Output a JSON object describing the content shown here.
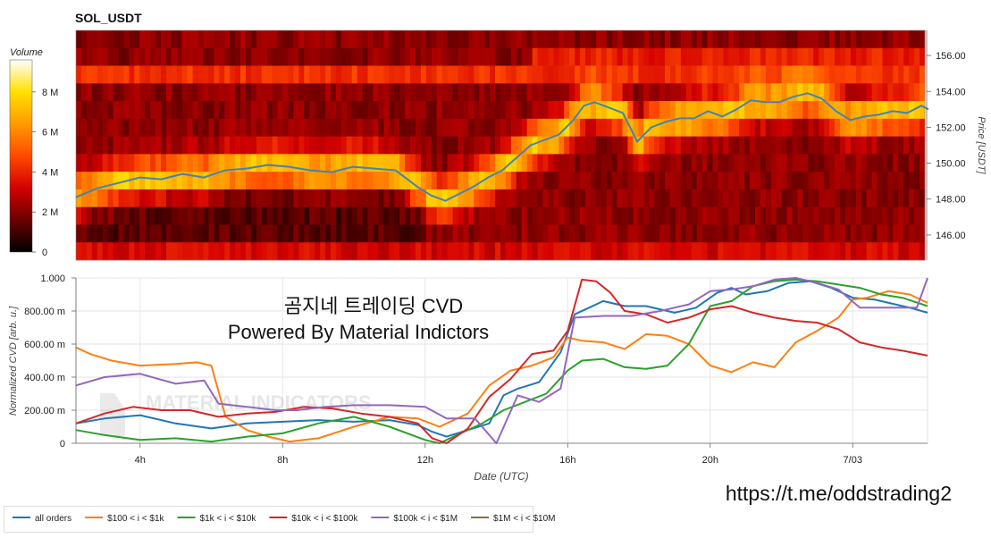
{
  "chart_data": [
    {
      "type": "heatmap",
      "title": "SOL_USDT",
      "colorbar": {
        "label": "Volume",
        "ticks": [
          "0",
          "2 M",
          "4 M",
          "6 M",
          "8 M"
        ],
        "tick_values": [
          0,
          2,
          4,
          6,
          8
        ],
        "range": [
          0,
          9.6
        ],
        "colors": [
          "#000000",
          "#6b0000",
          "#d40000",
          "#ff4a00",
          "#ff9a00",
          "#ffe000",
          "#ffffff"
        ]
      },
      "y_right": {
        "label": "Price [USDT]",
        "ticks": [
          "146.00",
          "148.00",
          "150.00",
          "152.00",
          "154.00",
          "156.00"
        ],
        "tick_values": [
          146,
          148,
          150,
          152,
          154,
          156
        ],
        "range": [
          144.6,
          157.4
        ]
      },
      "price_line": {
        "color": "#4682b4",
        "x_hours": [
          2.2,
          2.8,
          3.4,
          4.0,
          4.6,
          5.2,
          5.8,
          6.4,
          7.0,
          7.6,
          8.2,
          8.8,
          9.4,
          10.0,
          10.6,
          11.2,
          11.8,
          12.2,
          12.6,
          13.0,
          13.4,
          13.8,
          14.2,
          14.6,
          15.0,
          15.4,
          15.8,
          16.2,
          16.5,
          16.8,
          17.2,
          17.6,
          18.0,
          18.4,
          18.8,
          19.2,
          19.6,
          20.0,
          20.4,
          20.8,
          21.2,
          21.6,
          22.0,
          22.4,
          22.8,
          23.2,
          23.6,
          24.0,
          24.4,
          24.8,
          25.2,
          25.6,
          26.0,
          26.2
        ],
        "y_price": [
          148.1,
          148.6,
          148.9,
          149.2,
          149.1,
          149.4,
          149.2,
          149.6,
          149.7,
          149.9,
          149.8,
          149.6,
          149.5,
          149.8,
          149.7,
          149.6,
          148.7,
          148.2,
          147.9,
          148.3,
          148.7,
          149.2,
          149.6,
          150.3,
          151.0,
          151.3,
          151.6,
          152.4,
          153.2,
          153.4,
          153.1,
          152.8,
          151.2,
          152.0,
          152.3,
          152.5,
          152.5,
          152.9,
          152.6,
          153.0,
          153.5,
          153.4,
          153.4,
          153.7,
          153.9,
          153.6,
          152.9,
          152.4,
          152.6,
          152.7,
          152.9,
          152.8,
          153.2,
          153.0
        ]
      }
    },
    {
      "type": "line",
      "title": "곰지네 트레이딩 CVD",
      "subtitle": "Powered By Material Indictors",
      "xlabel": "Date (UTC)",
      "ylabel": "Normalized CVD [arb. u.]",
      "x_ticks": [
        "4h",
        "8h",
        "12h",
        "16h",
        "20h",
        "7/03"
      ],
      "x_tick_values": [
        4,
        8,
        12,
        16,
        20,
        24
      ],
      "xlim": [
        2.2,
        26.1
      ],
      "y_ticks": [
        "0",
        "200.00 m",
        "400.00 m",
        "600.00 m",
        "800.00 m",
        "1.000"
      ],
      "y_tick_values": [
        0,
        0.2,
        0.4,
        0.6,
        0.8,
        1.0
      ],
      "ylim": [
        0,
        1.0
      ],
      "grid": true,
      "legend_position": "bottom",
      "series": [
        {
          "name": "all orders",
          "color": "#1f77b4",
          "x": [
            2.2,
            3.0,
            4.0,
            5.0,
            6.0,
            7.0,
            8.0,
            9.0,
            10.0,
            11.0,
            11.8,
            12.2,
            12.6,
            13.2,
            13.8,
            14.2,
            14.6,
            15.2,
            15.8,
            16.2,
            16.6,
            17.0,
            17.6,
            18.2,
            19.0,
            19.6,
            20.2,
            20.6,
            21.0,
            21.6,
            22.2,
            22.8,
            23.4,
            24.0,
            24.6,
            25.2,
            25.6,
            26.1
          ],
          "y": [
            0.12,
            0.15,
            0.17,
            0.12,
            0.09,
            0.12,
            0.13,
            0.14,
            0.13,
            0.14,
            0.11,
            0.07,
            0.04,
            0.08,
            0.12,
            0.29,
            0.33,
            0.37,
            0.55,
            0.78,
            0.82,
            0.86,
            0.83,
            0.83,
            0.79,
            0.82,
            0.91,
            0.94,
            0.9,
            0.92,
            0.97,
            0.98,
            0.94,
            0.88,
            0.87,
            0.84,
            0.82,
            0.79
          ]
        },
        {
          "name": "$100 < i < $1k",
          "color": "#ff7f0e",
          "x": [
            2.2,
            2.6,
            3.2,
            4.0,
            5.0,
            5.6,
            6.0,
            6.4,
            7.0,
            7.6,
            8.2,
            9.0,
            10.0,
            11.0,
            11.8,
            12.4,
            13.2,
            13.8,
            14.4,
            15.0,
            15.6,
            16.0,
            16.4,
            17.0,
            17.6,
            18.2,
            18.8,
            19.4,
            20.0,
            20.6,
            21.2,
            21.8,
            22.4,
            23.0,
            23.6,
            24.0,
            24.4,
            25.0,
            25.6,
            26.1
          ],
          "y": [
            0.58,
            0.54,
            0.5,
            0.47,
            0.48,
            0.49,
            0.47,
            0.16,
            0.08,
            0.04,
            0.01,
            0.03,
            0.1,
            0.16,
            0.15,
            0.1,
            0.18,
            0.35,
            0.44,
            0.47,
            0.52,
            0.64,
            0.62,
            0.61,
            0.57,
            0.66,
            0.65,
            0.6,
            0.47,
            0.43,
            0.49,
            0.46,
            0.61,
            0.68,
            0.76,
            0.87,
            0.88,
            0.92,
            0.9,
            0.85
          ]
        },
        {
          "name": "$1k < i < $10k",
          "color": "#2ca02c",
          "x": [
            2.2,
            3.0,
            4.0,
            5.0,
            6.0,
            7.0,
            8.0,
            9.0,
            10.0,
            11.0,
            12.0,
            12.4,
            13.0,
            13.6,
            14.2,
            14.8,
            15.4,
            16.0,
            16.4,
            17.0,
            17.6,
            18.2,
            18.8,
            19.4,
            20.0,
            20.6,
            21.2,
            21.8,
            22.4,
            23.0,
            23.6,
            24.2,
            24.8,
            25.4,
            26.1
          ],
          "y": [
            0.08,
            0.05,
            0.02,
            0.03,
            0.01,
            0.04,
            0.06,
            0.12,
            0.16,
            0.1,
            0.02,
            0.0,
            0.06,
            0.12,
            0.2,
            0.25,
            0.3,
            0.44,
            0.5,
            0.51,
            0.46,
            0.45,
            0.47,
            0.6,
            0.83,
            0.86,
            0.95,
            0.98,
            0.99,
            0.98,
            0.96,
            0.94,
            0.9,
            0.88,
            0.83
          ]
        },
        {
          "name": "$10k < i < $100k",
          "color": "#d62728",
          "x": [
            2.2,
            3.0,
            3.8,
            4.6,
            5.4,
            6.2,
            7.0,
            7.8,
            8.6,
            9.4,
            10.2,
            11.0,
            11.8,
            12.2,
            12.6,
            13.2,
            13.8,
            14.4,
            15.0,
            15.6,
            16.0,
            16.4,
            16.8,
            17.2,
            17.6,
            18.2,
            18.8,
            19.4,
            20.0,
            20.6,
            21.2,
            21.8,
            22.4,
            23.0,
            23.6,
            24.2,
            24.8,
            25.4,
            26.1
          ],
          "y": [
            0.12,
            0.18,
            0.22,
            0.2,
            0.2,
            0.16,
            0.18,
            0.19,
            0.22,
            0.21,
            0.18,
            0.16,
            0.12,
            0.03,
            0.0,
            0.09,
            0.28,
            0.39,
            0.54,
            0.56,
            0.68,
            0.99,
            0.98,
            0.91,
            0.8,
            0.78,
            0.73,
            0.76,
            0.81,
            0.83,
            0.79,
            0.76,
            0.74,
            0.73,
            0.69,
            0.61,
            0.58,
            0.56,
            0.53
          ]
        },
        {
          "name": "$100k < i < $1M",
          "color": "#9467bd",
          "x": [
            2.2,
            3.0,
            4.0,
            5.0,
            5.8,
            6.2,
            7.0,
            7.8,
            8.4,
            9.2,
            10.0,
            11.0,
            12.0,
            12.6,
            13.4,
            14.0,
            14.6,
            15.2,
            15.8,
            16.2,
            17.0,
            17.8,
            18.6,
            19.4,
            20.0,
            20.6,
            21.2,
            21.8,
            22.4,
            23.0,
            23.6,
            24.2,
            24.8,
            25.4,
            25.8,
            26.1
          ],
          "y": [
            0.35,
            0.4,
            0.42,
            0.36,
            0.38,
            0.24,
            0.22,
            0.2,
            0.2,
            0.22,
            0.23,
            0.23,
            0.22,
            0.15,
            0.15,
            0.0,
            0.29,
            0.25,
            0.33,
            0.76,
            0.77,
            0.77,
            0.8,
            0.84,
            0.92,
            0.93,
            0.95,
            0.99,
            1.0,
            0.97,
            0.93,
            0.82,
            0.82,
            0.82,
            0.82,
            1.0
          ]
        },
        {
          "name": "$1M < i < $10M",
          "color": "#8c6d46",
          "x": [],
          "y": []
        }
      ]
    }
  ],
  "watermark": "https://t.me/oddstrading2",
  "logo_text": "MATERIAL INDICATORS"
}
